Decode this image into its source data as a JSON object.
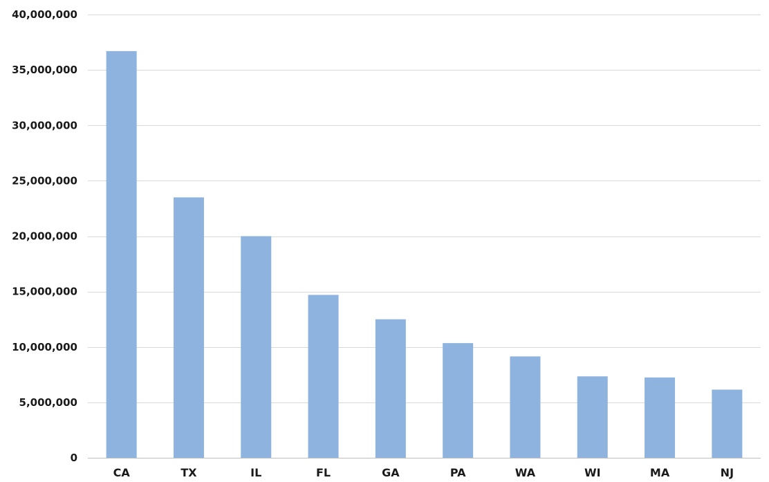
{
  "chart_data": {
    "type": "bar",
    "categories": [
      "CA",
      "TX",
      "IL",
      "FL",
      "GA",
      "PA",
      "WA",
      "WI",
      "MA",
      "NJ"
    ],
    "values": [
      36700000,
      23500000,
      20000000,
      14700000,
      12500000,
      10350000,
      9150000,
      7350000,
      7250000,
      6150000
    ],
    "title": "",
    "xlabel": "",
    "ylabel": "",
    "ylim": [
      0,
      40000000
    ],
    "yticks": [
      0,
      5000000,
      10000000,
      15000000,
      20000000,
      25000000,
      30000000,
      35000000,
      40000000
    ],
    "ytick_labels": [
      "0",
      "5,000,000",
      "10,000,000",
      "15,000,000",
      "20,000,000",
      "25,000,000",
      "30,000,000",
      "35,000,000",
      "40,000,000"
    ],
    "grid": true,
    "legend": "none",
    "bar_color": "#8db3de",
    "grid_color": "#d9d9d9",
    "axis_color": "#bfbfbf",
    "text_color": "#1a1a1a"
  }
}
